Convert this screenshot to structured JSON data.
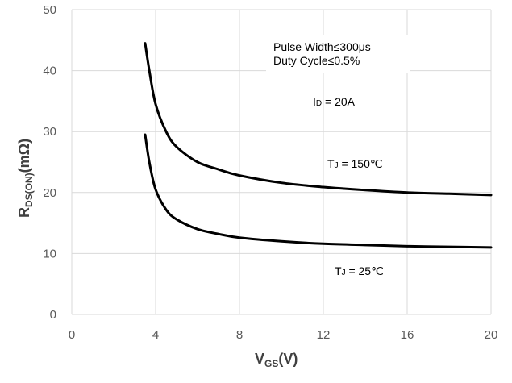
{
  "chart_data": {
    "type": "line",
    "xlabel": "V",
    "xlabel_sub": "GS",
    "xlabel_suffix": "(V)",
    "ylabel": "R",
    "ylabel_sub": "DS(ON)",
    "ylabel_suffix": "(mΩ)",
    "xlim": [
      0,
      20
    ],
    "ylim": [
      0,
      50
    ],
    "xticks": [
      "0",
      "4",
      "8",
      "12",
      "16",
      "20"
    ],
    "yticks": [
      "0",
      "10",
      "20",
      "30",
      "40",
      "50"
    ],
    "grid": true,
    "series": [
      {
        "name": "TJ = 150℃",
        "color": "#000000",
        "x": [
          3.5,
          3.7,
          4.0,
          4.5,
          5.0,
          6.0,
          7.0,
          8.0,
          10.0,
          12.0,
          14.0,
          16.0,
          18.0,
          20.0
        ],
        "y": [
          44.5,
          40.0,
          34.5,
          30.0,
          27.5,
          25.0,
          23.8,
          22.8,
          21.6,
          20.9,
          20.4,
          20.0,
          19.8,
          19.6
        ]
      },
      {
        "name": "TJ = 25℃",
        "color": "#000000",
        "x": [
          3.5,
          3.7,
          4.0,
          4.5,
          5.0,
          6.0,
          7.0,
          8.0,
          10.0,
          12.0,
          14.0,
          16.0,
          18.0,
          20.0
        ],
        "y": [
          29.5,
          25.0,
          20.5,
          17.2,
          15.6,
          14.0,
          13.2,
          12.6,
          12.0,
          11.6,
          11.4,
          11.2,
          11.1,
          11.0
        ]
      }
    ],
    "annotations": {
      "pulse_width": "Pulse Width≤300μs",
      "duty_cycle": "Duty Cycle≤0.5%",
      "id_main": "I",
      "id_sub": "D",
      "id_rest": " = 20A",
      "tj150_main": "T",
      "tj150_sub": "J",
      "tj150_rest": " = 150℃",
      "tj25_main": "T",
      "tj25_sub": "J",
      "tj25_rest": " = 25℃"
    },
    "colors": {
      "grid": "#d9d9d9",
      "axis_text": "#595959",
      "title_text": "#404040",
      "curve": "#000000"
    }
  }
}
